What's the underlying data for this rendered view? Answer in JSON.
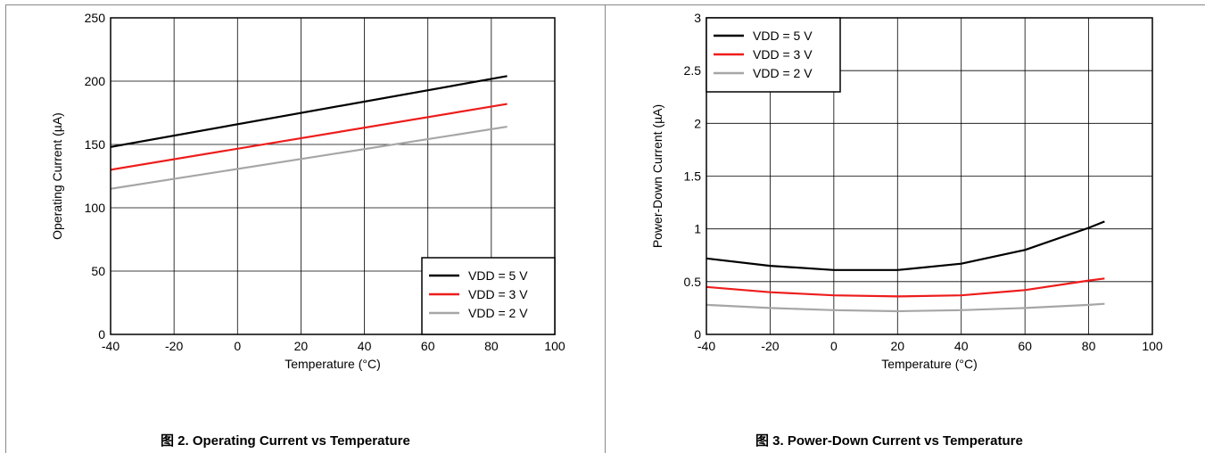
{
  "chart_data": [
    {
      "type": "line",
      "caption": "图 2. Operating Current vs Temperature",
      "xlabel": "Temperature (°C)",
      "ylabel": "Operating Current (µA)",
      "xlim": [
        -40,
        100
      ],
      "ylim": [
        0,
        250
      ],
      "xticks": [
        -40,
        -20,
        0,
        20,
        40,
        60,
        80,
        100
      ],
      "yticks": [
        0,
        50,
        100,
        150,
        200,
        250
      ],
      "grid": true,
      "legend_position": "bottom-right",
      "series": [
        {
          "name": "VDD = 5 V",
          "color": "#000000",
          "x": [
            -40,
            85
          ],
          "y": [
            148,
            204
          ]
        },
        {
          "name": "VDD = 3 V",
          "color": "#ee1c1c",
          "x": [
            -40,
            85
          ],
          "y": [
            130,
            182
          ]
        },
        {
          "name": "VDD = 2 V",
          "color": "#a6a6a6",
          "x": [
            -40,
            85
          ],
          "y": [
            115,
            164
          ]
        }
      ]
    },
    {
      "type": "line",
      "caption": "图 3. Power-Down Current vs Temperature",
      "xlabel": "Temperature (°C)",
      "ylabel": "Power-Down Current (µA)",
      "xlim": [
        -40,
        100
      ],
      "ylim": [
        0,
        3
      ],
      "xticks": [
        -40,
        -20,
        0,
        20,
        40,
        60,
        80,
        100
      ],
      "yticks": [
        0,
        0.5,
        1,
        1.5,
        2,
        2.5,
        3
      ],
      "grid": true,
      "legend_position": "top-left",
      "series": [
        {
          "name": "VDD = 5 V",
          "color": "#000000",
          "x": [
            -40,
            -20,
            0,
            20,
            40,
            60,
            80,
            85
          ],
          "y": [
            0.72,
            0.65,
            0.61,
            0.61,
            0.67,
            0.8,
            1.01,
            1.07
          ]
        },
        {
          "name": "VDD = 3 V",
          "color": "#ee1c1c",
          "x": [
            -40,
            -20,
            0,
            20,
            40,
            60,
            80,
            85
          ],
          "y": [
            0.45,
            0.4,
            0.37,
            0.36,
            0.37,
            0.42,
            0.51,
            0.53
          ]
        },
        {
          "name": "VDD = 2 V",
          "color": "#a6a6a6",
          "x": [
            -40,
            -20,
            0,
            20,
            40,
            60,
            80,
            85
          ],
          "y": [
            0.28,
            0.25,
            0.23,
            0.22,
            0.23,
            0.25,
            0.28,
            0.29
          ]
        }
      ]
    }
  ]
}
